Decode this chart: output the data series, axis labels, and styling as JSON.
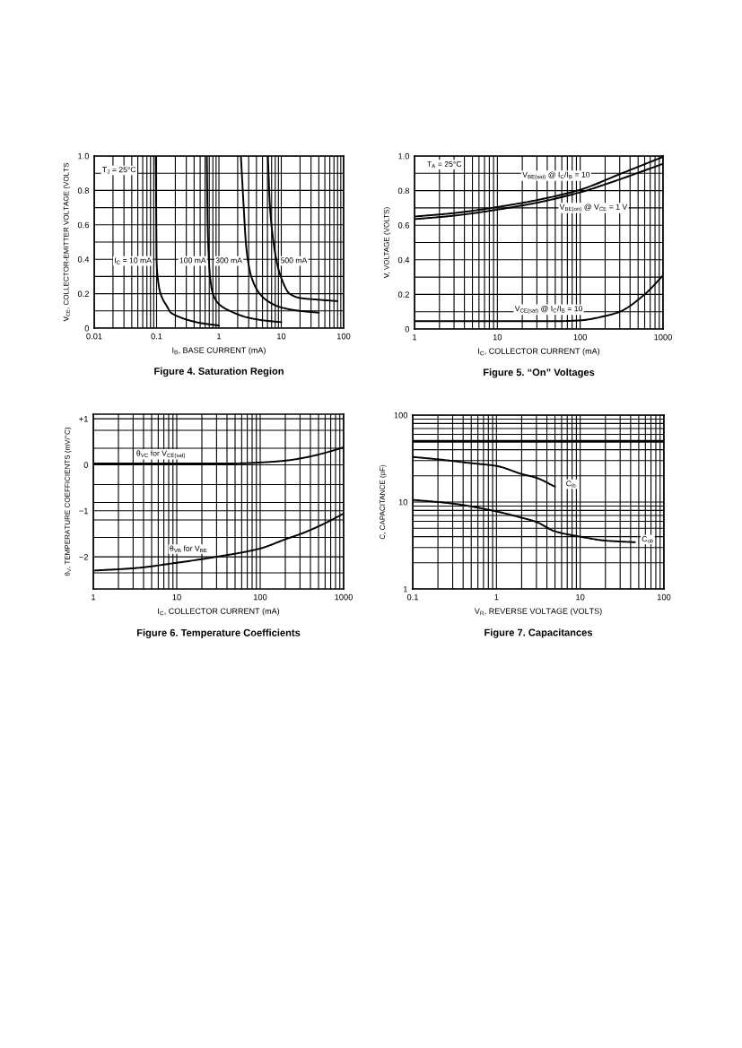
{
  "chart_data": [
    {
      "type": "line",
      "title": "Figure 4. Saturation Region",
      "xlabel": "I$_{B}$, BASE CURRENT (mA)",
      "ylabel": "V$_{CE}$, COLLECTOR-EMITTER VOLTAGE (VOLTS",
      "log": "x",
      "grid": true,
      "xlim": [
        0.01,
        100
      ],
      "ylim": [
        0,
        1
      ],
      "xticks": [
        0.01,
        {
          "value": 0.02,
          "label": null
        },
        {
          "value": 0.03,
          "label": null
        },
        {
          "value": 0.04,
          "label": null
        },
        {
          "value": 0.05,
          "label": null
        },
        {
          "value": 0.06,
          "label": null
        },
        {
          "value": 0.07,
          "label": null
        },
        {
          "value": 0.08,
          "label": null
        },
        {
          "value": 0.09,
          "label": null
        },
        0.1,
        {
          "value": 0.2,
          "label": null
        },
        {
          "value": 0.3,
          "label": null
        },
        {
          "value": 0.4,
          "label": null
        },
        {
          "value": 0.5,
          "label": null
        },
        {
          "value": 0.6,
          "label": null
        },
        {
          "value": 0.7,
          "label": null
        },
        {
          "value": 0.8,
          "label": null
        },
        {
          "value": 0.9,
          "label": null
        },
        1,
        {
          "value": 2,
          "label": null
        },
        {
          "value": 3,
          "label": null
        },
        {
          "value": 4,
          "label": null
        },
        {
          "value": 5,
          "label": null
        },
        {
          "value": 6,
          "label": null
        },
        {
          "value": 7,
          "label": null
        },
        {
          "value": 8,
          "label": null
        },
        {
          "value": 9,
          "label": null
        },
        10,
        {
          "value": 20,
          "label": null
        },
        {
          "value": 30,
          "label": null
        },
        {
          "value": 40,
          "label": null
        },
        {
          "value": 50,
          "label": null
        },
        {
          "value": 60,
          "label": null
        },
        {
          "value": 70,
          "label": null
        },
        {
          "value": 80,
          "label": null
        },
        {
          "value": 90,
          "label": null
        },
        100
      ],
      "yticks": [
        0,
        {
          "value": 0.1,
          "label": null
        },
        0.2,
        {
          "value": 0.3,
          "label": null
        },
        0.4,
        {
          "value": 0.5,
          "label": null
        },
        0.6,
        {
          "value": 0.7,
          "label": null
        },
        0.8,
        {
          "value": 0.9,
          "label": null
        },
        {
          "value": 1,
          "label": "1.0"
        }
      ],
      "annotations": [
        "T$_{J}$ = 25°C"
      ],
      "series": [
        {
          "name": "I$_{C}$ = 10 mA",
          "color": "#000000",
          "x": [
            0.097,
            0.099,
            0.1,
            0.104,
            0.112,
            0.125,
            0.145,
            0.17,
            0.2,
            0.3,
            0.5,
            1.0
          ],
          "values": [
            1.0,
            0.6,
            0.4,
            0.3,
            0.22,
            0.17,
            0.13,
            0.09,
            0.075,
            0.05,
            0.03,
            0.015
          ]
        },
        {
          "name": "100 mA",
          "color": "#000000",
          "x": [
            0.64,
            0.66,
            0.69,
            0.72,
            0.8,
            1.0,
            1.5,
            3,
            6,
            10
          ],
          "values": [
            1.0,
            0.6,
            0.4,
            0.3,
            0.2,
            0.14,
            0.1,
            0.06,
            0.042,
            0.035
          ]
        },
        {
          "name": "300 mA",
          "color": "#000000",
          "x": [
            2.25,
            2.5,
            2.7,
            2.9,
            3.3,
            4.5,
            6.5,
            10,
            20,
            40
          ],
          "values": [
            1.0,
            0.7,
            0.5,
            0.4,
            0.3,
            0.2,
            0.15,
            0.12,
            0.1,
            0.09
          ]
        },
        {
          "name": "500 mA",
          "color": "#000000",
          "x": [
            6.1,
            6.6,
            7.5,
            8.3,
            9.8,
            13.6,
            20,
            40,
            80
          ],
          "values": [
            1.0,
            0.7,
            0.5,
            0.4,
            0.3,
            0.2,
            0.175,
            0.165,
            0.157
          ]
        }
      ]
    },
    {
      "type": "line",
      "title": "Figure 5. “On” Voltages",
      "xlabel": "I$_{C}$, COLLECTOR CURRENT (mA)",
      "ylabel": "V, VOLTAGE (VOLTS)",
      "log": "x",
      "grid": true,
      "xlim": [
        1,
        1000
      ],
      "ylim": [
        0,
        1
      ],
      "xticks": [
        1,
        {
          "value": 2,
          "label": null
        },
        {
          "value": 3,
          "label": null
        },
        {
          "value": 4,
          "label": null
        },
        {
          "value": 5,
          "label": null
        },
        {
          "value": 6,
          "label": null
        },
        {
          "value": 7,
          "label": null
        },
        {
          "value": 8,
          "label": null
        },
        {
          "value": 9,
          "label": null
        },
        10,
        {
          "value": 20,
          "label": null
        },
        {
          "value": 30,
          "label": null
        },
        {
          "value": 40,
          "label": null
        },
        {
          "value": 50,
          "label": null
        },
        {
          "value": 60,
          "label": null
        },
        {
          "value": 70,
          "label": null
        },
        {
          "value": 80,
          "label": null
        },
        {
          "value": 90,
          "label": null
        },
        100,
        {
          "value": 200,
          "label": null
        },
        {
          "value": 300,
          "label": null
        },
        {
          "value": 400,
          "label": null
        },
        {
          "value": 500,
          "label": null
        },
        {
          "value": 600,
          "label": null
        },
        {
          "value": 700,
          "label": null
        },
        {
          "value": 800,
          "label": null
        },
        {
          "value": 900,
          "label": null
        },
        1000
      ],
      "yticks": [
        0,
        {
          "value": 0.1,
          "label": null
        },
        0.2,
        {
          "value": 0.3,
          "label": null
        },
        0.4,
        {
          "value": 0.5,
          "label": null
        },
        0.6,
        {
          "value": 0.7,
          "label": null
        },
        0.8,
        {
          "value": 0.9,
          "label": null
        },
        {
          "value": 1,
          "label": "1.0"
        }
      ],
      "annotations": [
        "T$_{A}$ = 25°C"
      ],
      "series": [
        {
          "name": "V$_{BE(sat)}$ @ I$_{C}$/I$_{B}$ = 10",
          "color": "#000000",
          "x": [
            1,
            3,
            10,
            30,
            100,
            300,
            1000
          ],
          "values": [
            0.65,
            0.67,
            0.705,
            0.745,
            0.805,
            0.895,
            0.995
          ]
        },
        {
          "name": "V$_{BE(on)}$ @ V$_{CE}$ = 1 V",
          "color": "#000000",
          "x": [
            1,
            3,
            10,
            30,
            100,
            300,
            1000
          ],
          "values": [
            0.635,
            0.655,
            0.69,
            0.73,
            0.79,
            0.865,
            0.955
          ]
        },
        {
          "name": "V$_{CE(sat)}$ @ I$_{C}$/I$_{B}$ = 10",
          "color": "#000000",
          "x": [
            1,
            10,
            50,
            100,
            200,
            300,
            600,
            1000
          ],
          "values": [
            0.045,
            0.045,
            0.045,
            0.05,
            0.075,
            0.1,
            0.2,
            0.31
          ]
        }
      ]
    },
    {
      "type": "line",
      "title": "Figure 6. Temperature Coefficients",
      "xlabel": "I$_{C}$, COLLECTOR CURRENT (mA)",
      "ylabel": "θ$_{V}$, TEMPERATURE COEFFICIENTS (mV/°C)",
      "log": "x",
      "grid": true,
      "xlim": [
        1,
        1000
      ],
      "ylim": [
        -2.7,
        1.1
      ],
      "xticks": [
        1,
        {
          "value": 2,
          "label": null
        },
        {
          "value": 3,
          "label": null
        },
        {
          "value": 4,
          "label": null
        },
        {
          "value": 5,
          "label": null
        },
        {
          "value": 6,
          "label": null
        },
        {
          "value": 7,
          "label": null
        },
        {
          "value": 8,
          "label": null
        },
        {
          "value": 9,
          "label": null
        },
        10,
        {
          "value": 20,
          "label": null
        },
        {
          "value": 30,
          "label": null
        },
        {
          "value": 40,
          "label": null
        },
        {
          "value": 50,
          "label": null
        },
        {
          "value": 60,
          "label": null
        },
        {
          "value": 70,
          "label": null
        },
        {
          "value": 80,
          "label": null
        },
        {
          "value": 90,
          "label": null
        },
        100,
        {
          "value": 200,
          "label": null
        },
        {
          "value": 300,
          "label": null
        },
        {
          "value": 400,
          "label": null
        },
        {
          "value": 500,
          "label": null
        },
        {
          "value": 600,
          "label": null
        },
        {
          "value": 700,
          "label": null
        },
        {
          "value": 800,
          "label": null
        },
        {
          "value": 900,
          "label": null
        },
        1000
      ],
      "yticks": [
        {
          "value": -2.35,
          "label": null
        },
        {
          "value": -2,
          "label": "−2"
        },
        {
          "value": -1.58,
          "label": null
        },
        {
          "value": -1.2,
          "label": null
        },
        {
          "value": -1,
          "label": "−1"
        },
        {
          "value": -0.82,
          "label": null
        },
        {
          "value": -0.43,
          "label": null
        },
        0,
        {
          "value": 0.36,
          "label": null
        },
        {
          "value": 0.75,
          "label": null
        },
        {
          "value": 1,
          "label": "+1"
        }
      ],
      "series": [
        {
          "name": "θ$_{VC}$ for V$_{CE(sat)}$",
          "color": "#000000",
          "x": [
            1,
            50,
            100,
            200,
            330,
            600,
            1000
          ],
          "values": [
            0.03,
            0.03,
            0.05,
            0.09,
            0.15,
            0.26,
            0.38
          ]
        },
        {
          "name": "θ$_{VB}$ for V$_{BE}$",
          "color": "#000000",
          "x": [
            1,
            3,
            10,
            30,
            100,
            200,
            330,
            600,
            1000
          ],
          "values": [
            -2.3,
            -2.25,
            -2.13,
            -2.0,
            -1.82,
            -1.62,
            -1.48,
            -1.27,
            -1.06
          ]
        }
      ]
    },
    {
      "type": "line",
      "title": "Figure 7. Capacitances",
      "xlabel": "V$_{R}$, REVERSE VOLTAGE (VOLTS)",
      "ylabel": "C, CAPACITANCE (pF)",
      "log": "xy",
      "grid": true,
      "xlim": [
        0.1,
        100
      ],
      "ylim": [
        1,
        100
      ],
      "xticks": [
        0.1,
        {
          "value": 0.2,
          "label": null
        },
        {
          "value": 0.3,
          "label": null
        },
        {
          "value": 0.4,
          "label": null
        },
        {
          "value": 0.5,
          "label": null
        },
        {
          "value": 0.6,
          "label": null
        },
        {
          "value": 0.7,
          "label": null
        },
        {
          "value": 0.8,
          "label": null
        },
        {
          "value": 0.9,
          "label": null
        },
        1,
        {
          "value": 2,
          "label": null
        },
        {
          "value": 3,
          "label": null
        },
        {
          "value": 4,
          "label": null
        },
        {
          "value": 5,
          "label": null
        },
        {
          "value": 6,
          "label": null
        },
        {
          "value": 7,
          "label": null
        },
        {
          "value": 8,
          "label": null
        },
        {
          "value": 9,
          "label": null
        },
        10,
        {
          "value": 20,
          "label": null
        },
        {
          "value": 30,
          "label": null
        },
        {
          "value": 40,
          "label": null
        },
        {
          "value": 50,
          "label": null
        },
        {
          "value": 60,
          "label": null
        },
        {
          "value": 70,
          "label": null
        },
        {
          "value": 80,
          "label": null
        },
        {
          "value": 90,
          "label": null
        },
        100
      ],
      "yticks": [
        1,
        {
          "value": 2,
          "label": null
        },
        {
          "value": 3,
          "label": null
        },
        {
          "value": 4,
          "label": null
        },
        {
          "value": 5,
          "label": null
        },
        {
          "value": 6,
          "label": null
        },
        {
          "value": 7,
          "label": null
        },
        {
          "value": 8,
          "label": null
        },
        {
          "value": 9,
          "label": null
        },
        10,
        {
          "value": 20,
          "label": null
        },
        {
          "value": 30,
          "label": null
        },
        {
          "value": 40,
          "label": null
        },
        {
          "value": 50,
          "label": null
        },
        {
          "value": 60,
          "label": null
        },
        {
          "value": 70,
          "label": null
        },
        {
          "value": 80,
          "label": null
        },
        {
          "value": 90,
          "label": null
        },
        100
      ],
      "ref_lines": [
        {
          "axis": "y",
          "value": 50,
          "color": "#000000"
        }
      ],
      "series": [
        {
          "name": "C$_{ib}$",
          "color": "#000000",
          "x": [
            0.1,
            0.2,
            0.5,
            1,
            2,
            3,
            5
          ],
          "values": [
            33,
            31,
            28,
            26,
            21,
            19,
            15
          ]
        },
        {
          "name": "C$_{ob}$",
          "color": "#000000",
          "x": [
            0.1,
            0.3,
            1,
            2,
            3,
            5,
            10,
            20,
            45
          ],
          "values": [
            10.6,
            9.6,
            7.8,
            6.6,
            5.9,
            4.6,
            4.0,
            3.6,
            3.45
          ]
        }
      ]
    }
  ]
}
